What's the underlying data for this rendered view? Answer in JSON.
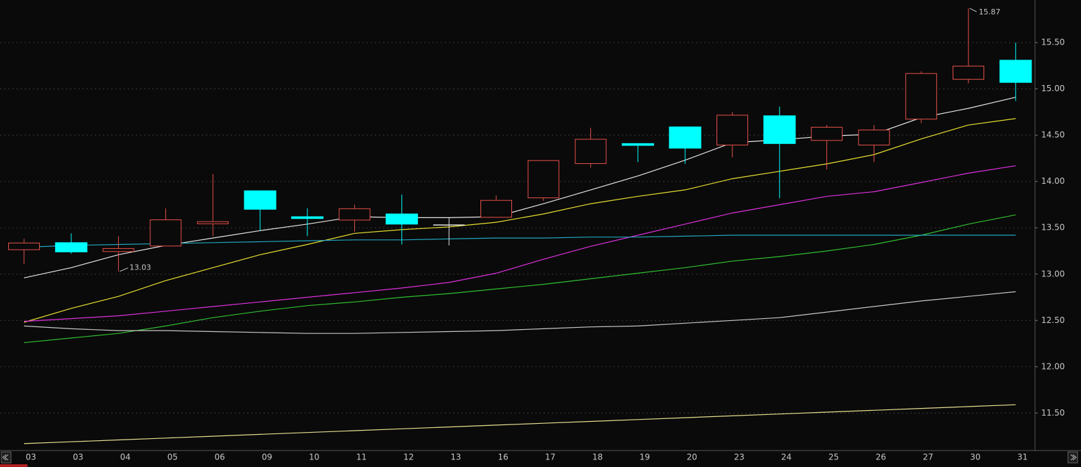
{
  "chart_data": {
    "type": "candlestick",
    "categories": [
      "03",
      "03",
      "04",
      "05",
      "06",
      "09",
      "10",
      "11",
      "12",
      "13",
      "16",
      "17",
      "18",
      "19",
      "20",
      "23",
      "24",
      "25",
      "26",
      "27",
      "30",
      "31"
    ],
    "open": [
      13.26,
      13.34,
      13.24,
      13.3,
      13.54,
      13.9,
      13.62,
      13.58,
      13.65,
      13.53,
      13.61,
      13.82,
      14.19,
      14.41,
      14.59,
      14.39,
      14.71,
      14.44,
      14.39,
      14.67,
      15.1,
      15.31
    ],
    "high": [
      13.38,
      13.44,
      13.41,
      13.71,
      14.08,
      13.9,
      13.71,
      13.75,
      13.86,
      13.61,
      13.85,
      14.23,
      14.58,
      14.41,
      14.59,
      14.75,
      14.81,
      14.61,
      14.61,
      15.19,
      15.87,
      15.5
    ],
    "low": [
      13.11,
      13.22,
      13.03,
      13.3,
      13.41,
      13.47,
      13.41,
      13.46,
      13.32,
      13.31,
      13.61,
      13.79,
      14.15,
      14.21,
      14.19,
      14.26,
      13.82,
      14.13,
      14.21,
      14.63,
      15.06,
      14.87
    ],
    "close": [
      13.34,
      13.24,
      13.28,
      13.59,
      13.57,
      13.7,
      13.6,
      13.71,
      13.54,
      13.53,
      13.8,
      14.23,
      14.46,
      14.39,
      14.36,
      14.72,
      14.41,
      14.59,
      14.56,
      15.17,
      15.25,
      15.07
    ],
    "up_color": "#e8514a",
    "down_color": "#00ffff",
    "flat_color": "#e6e6e6",
    "max_label": "15.87",
    "min_label": "13.03",
    "series": [
      {
        "color": "#e6e6e6",
        "values": [
          12.96,
          13.07,
          13.21,
          13.31,
          13.39,
          13.47,
          13.54,
          13.62,
          13.61,
          13.61,
          13.62,
          13.76,
          13.91,
          14.06,
          14.23,
          14.42,
          14.45,
          14.49,
          14.51,
          14.69,
          14.79,
          14.91
        ]
      },
      {
        "color": "#e8e030",
        "values": [
          12.48,
          12.63,
          12.76,
          12.93,
          13.07,
          13.21,
          13.32,
          13.44,
          13.48,
          13.51,
          13.56,
          13.65,
          13.76,
          13.84,
          13.91,
          14.03,
          14.11,
          14.19,
          14.29,
          14.46,
          14.61,
          14.68
        ]
      },
      {
        "color": "#e030e0",
        "values": [
          12.49,
          12.52,
          12.55,
          12.6,
          12.65,
          12.7,
          12.75,
          12.8,
          12.85,
          12.91,
          13.01,
          13.16,
          13.3,
          13.42,
          13.54,
          13.66,
          13.75,
          13.84,
          13.89,
          13.99,
          14.09,
          14.17
        ]
      },
      {
        "color": "#30c030",
        "values": [
          12.26,
          12.31,
          12.36,
          12.44,
          12.53,
          12.6,
          12.66,
          12.7,
          12.75,
          12.79,
          12.84,
          12.89,
          12.95,
          13.01,
          13.07,
          13.14,
          13.19,
          13.25,
          13.32,
          13.42,
          13.54,
          13.64
        ]
      },
      {
        "color": "#20a8c0",
        "values": [
          13.29,
          13.31,
          13.32,
          13.33,
          13.34,
          13.35,
          13.36,
          13.37,
          13.37,
          13.38,
          13.39,
          13.39,
          13.4,
          13.4,
          13.41,
          13.42,
          13.42,
          13.42,
          13.42,
          13.42,
          13.42,
          13.42
        ]
      },
      {
        "color": "#c8c8c8",
        "values": [
          12.44,
          12.41,
          12.39,
          12.39,
          12.38,
          12.37,
          12.36,
          12.36,
          12.37,
          12.38,
          12.39,
          12.41,
          12.43,
          12.44,
          12.47,
          12.5,
          12.53,
          12.59,
          12.65,
          12.71,
          12.76,
          12.81
        ]
      },
      {
        "color": "#e8e090",
        "values": [
          11.17,
          11.19,
          11.21,
          11.23,
          11.25,
          11.27,
          11.29,
          11.31,
          11.33,
          11.35,
          11.37,
          11.39,
          11.41,
          11.43,
          11.45,
          11.47,
          11.49,
          11.51,
          11.53,
          11.55,
          11.57,
          11.59
        ]
      }
    ],
    "ylim": [
      11.11,
      15.96
    ],
    "yticks": [
      {
        "value": 11.5,
        "label": "11.50"
      },
      {
        "value": 12,
        "label": "12.00"
      },
      {
        "value": 12.5,
        "label": "12.50"
      },
      {
        "value": 13,
        "label": "13.00"
      },
      {
        "value": 13.5,
        "label": "13.50"
      },
      {
        "value": 14,
        "label": "14.00"
      },
      {
        "value": 14.5,
        "label": "14.50"
      },
      {
        "value": 15,
        "label": "15.00"
      },
      {
        "value": 15.5,
        "label": "15.50"
      }
    ],
    "grid": true
  }
}
